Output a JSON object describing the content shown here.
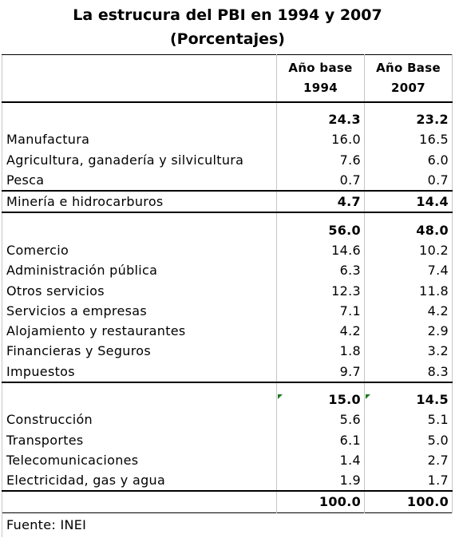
{
  "title_line1": "La estrucura del PBI en 1994 y 2007",
  "title_line2": "(Porcentajes)",
  "headers": {
    "col1_line1": "Año base",
    "col1_line2": "1994",
    "col2_line1": "Año Base",
    "col2_line2": "2007"
  },
  "groups": [
    {
      "total": [
        "24.3",
        "23.2"
      ],
      "rows": [
        {
          "label": "Manufactura",
          "v1994": "16.0",
          "v2007": "16.5"
        },
        {
          "label": "Agricultura, ganadería y silvicultura",
          "v1994": "7.6",
          "v2007": "6.0"
        },
        {
          "label": "Pesca",
          "v1994": "0.7",
          "v2007": "0.7"
        }
      ]
    },
    {
      "single": {
        "label": "Minería e hidrocarburos",
        "v1994": "4.7",
        "v2007": "14.4"
      }
    },
    {
      "total": [
        "56.0",
        "48.0"
      ],
      "rows": [
        {
          "label": "Comercio",
          "v1994": "14.6",
          "v2007": "10.2"
        },
        {
          "label": "Administración pública",
          "v1994": "6.3",
          "v2007": "7.4"
        },
        {
          "label": "Otros servicios",
          "v1994": "12.3",
          "v2007": "11.8"
        },
        {
          "label": "Servicios a empresas",
          "v1994": "7.1",
          "v2007": "4.2"
        },
        {
          "label": "Alojamiento y restaurantes",
          "v1994": "4.2",
          "v2007": "2.9"
        },
        {
          "label": "Financieras y Seguros",
          "v1994": "1.8",
          "v2007": "3.2"
        },
        {
          "label": "Impuestos",
          "v1994": "9.7",
          "v2007": "8.3"
        }
      ]
    },
    {
      "total": [
        "15.0",
        "14.5"
      ],
      "rows": [
        {
          "label": "Construcción",
          "v1994": "5.6",
          "v2007": "5.1"
        },
        {
          "label": "Transportes",
          "v1994": "6.1",
          "v2007": "5.0"
        },
        {
          "label": "Telecomunicaciones",
          "v1994": "1.4",
          "v2007": "2.7"
        },
        {
          "label": "Electricidad, gas y agua",
          "v1994": "1.9",
          "v2007": "1.7"
        }
      ]
    }
  ],
  "grand_total": [
    "100.0",
    "100.0"
  ],
  "source": "Fuente: INEI",
  "colors": {
    "marker": "#1e7a1e",
    "grid": "#c6c6c6"
  }
}
